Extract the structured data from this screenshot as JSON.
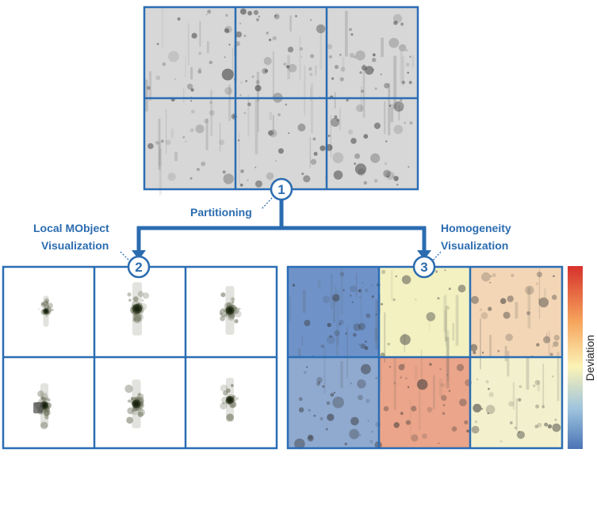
{
  "steps": [
    {
      "number": "1",
      "label": "Partitioning"
    },
    {
      "number": "2",
      "label_line1": "Local MObject",
      "label_line2": "Visualization"
    },
    {
      "number": "3",
      "label_line1": "Homogeneity",
      "label_line2": "Visualization"
    }
  ],
  "colorbar": {
    "label": "Deviation"
  },
  "colors": {
    "accent": "#2b6cb0",
    "grid_line": "#2a6db4",
    "image_bg": "#d7d7d7",
    "tile_deviation": [
      "#6f93c9",
      "#f3f1c2",
      "#f3d6b6",
      "#8fa9cf",
      "#eba58a",
      "#f3f1cd"
    ],
    "colorbar_stops": [
      "#d7312b",
      "#f6a35c",
      "#fbf3b6",
      "#9fc4de",
      "#4a74b5"
    ]
  }
}
